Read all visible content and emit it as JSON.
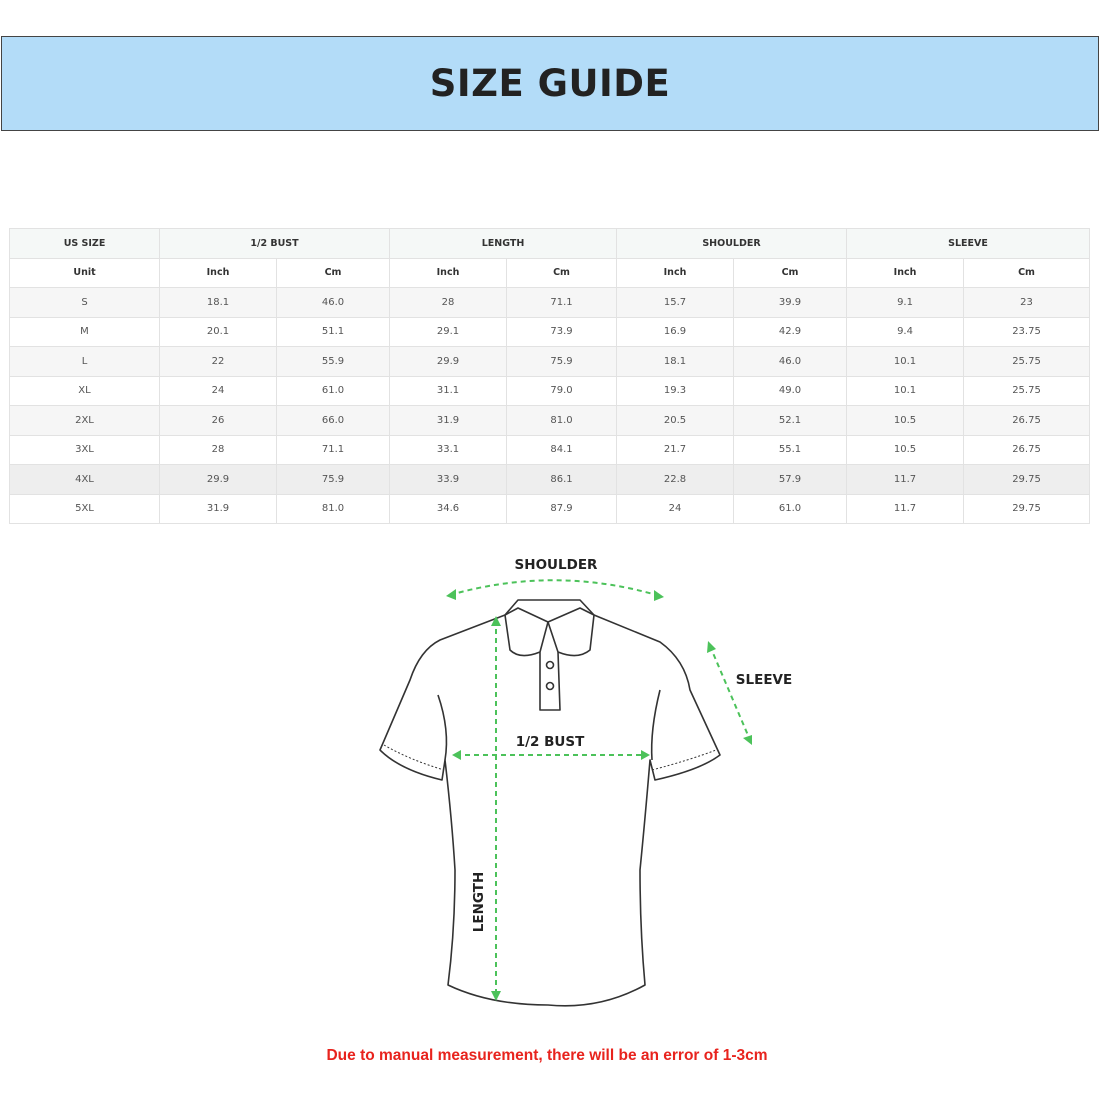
{
  "title": "SIZE GUIDE",
  "table": {
    "group_headers": [
      "US SIZE",
      "1/2 BUST",
      "LENGTH",
      "SHOULDER",
      "SLEEVE"
    ],
    "unit_label": "Unit",
    "unit_headers": [
      "Inch",
      "Cm",
      "Inch",
      "Cm",
      "Inch",
      "Cm",
      "Inch",
      "Cm"
    ],
    "rows": [
      [
        "S",
        "18.1",
        "46.0",
        "28",
        "71.1",
        "15.7",
        "39.9",
        "9.1",
        "23"
      ],
      [
        "M",
        "20.1",
        "51.1",
        "29.1",
        "73.9",
        "16.9",
        "42.9",
        "9.4",
        "23.75"
      ],
      [
        "L",
        "22",
        "55.9",
        "29.9",
        "75.9",
        "18.1",
        "46.0",
        "10.1",
        "25.75"
      ],
      [
        "XL",
        "24",
        "61.0",
        "31.1",
        "79.0",
        "19.3",
        "49.0",
        "10.1",
        "25.75"
      ],
      [
        "2XL",
        "26",
        "66.0",
        "31.9",
        "81.0",
        "20.5",
        "52.1",
        "10.5",
        "26.75"
      ],
      [
        "3XL",
        "28",
        "71.1",
        "33.1",
        "84.1",
        "21.7",
        "55.1",
        "10.5",
        "26.75"
      ],
      [
        "4XL",
        "29.9",
        "75.9",
        "33.9",
        "86.1",
        "22.8",
        "57.9",
        "11.7",
        "29.75"
      ],
      [
        "5XL",
        "31.9",
        "81.0",
        "34.6",
        "87.9",
        "24",
        "61.0",
        "11.7",
        "29.75"
      ]
    ]
  },
  "diagram": {
    "labels": {
      "shoulder": "SHOULDER",
      "sleeve": "SLEEVE",
      "bust": "1/2 BUST",
      "length": "LENGTH"
    },
    "arrow_color": "#4cc25a",
    "outline_color": "#333333"
  },
  "note": "Due to manual measurement, there will be an error of 1-3cm",
  "colors": {
    "banner": "#b3dcf8",
    "note": "#e8231d"
  }
}
